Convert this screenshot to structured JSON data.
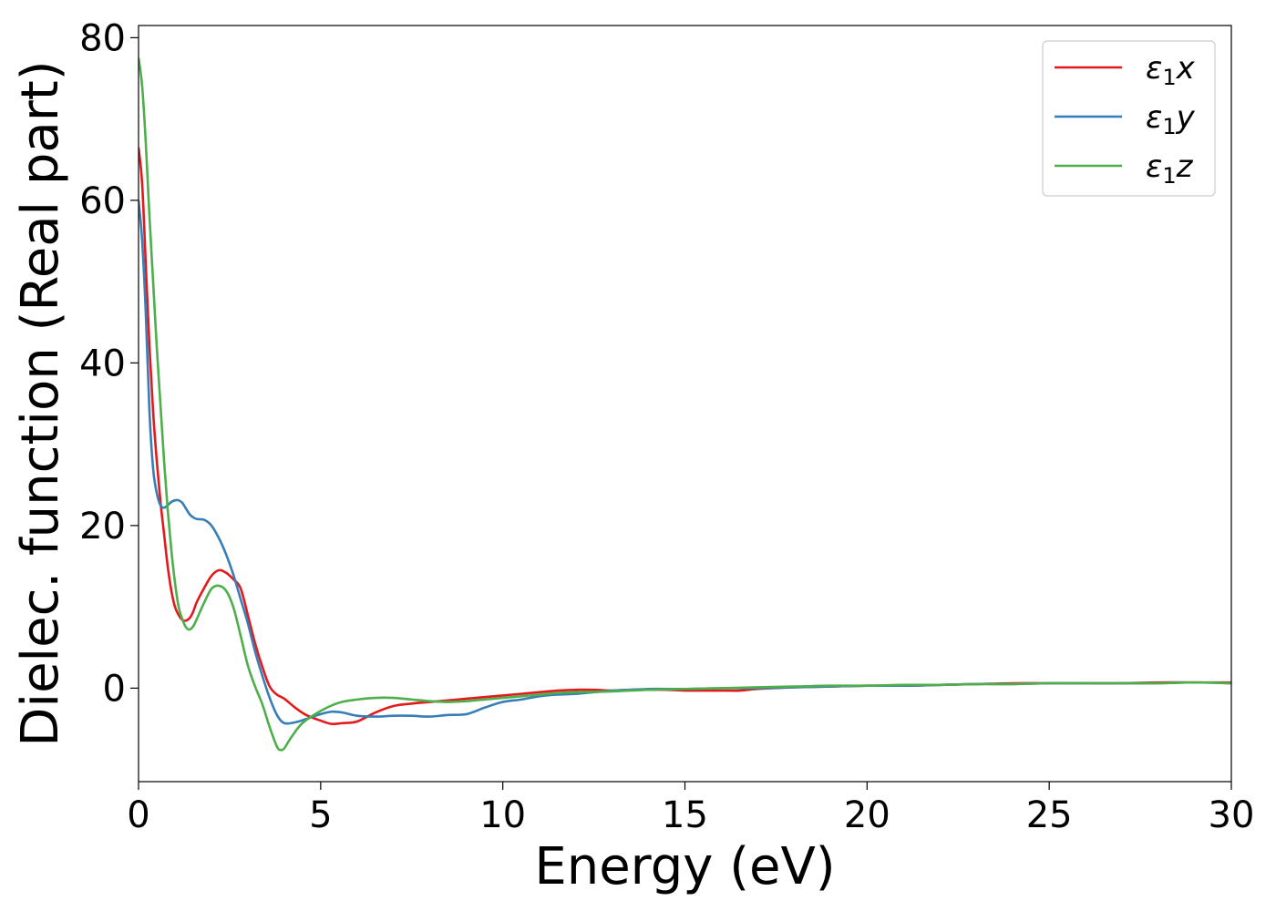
{
  "chart_data": {
    "type": "line",
    "title": "",
    "xlabel": "Energy (eV)",
    "ylabel": "Dielec. function (Real part)",
    "xlim": [
      0,
      30
    ],
    "ylim": [
      -11.5,
      81.5
    ],
    "xticks": [
      0,
      5,
      10,
      15,
      20,
      25,
      30
    ],
    "yticks": [
      0,
      20,
      40,
      60,
      80
    ],
    "xtick_labels": [
      "0",
      "5",
      "10",
      "15",
      "20",
      "25",
      "30"
    ],
    "ytick_labels": [
      "0",
      "20",
      "40",
      "60",
      "80"
    ],
    "grid": false,
    "legend_position": "top-right",
    "series": [
      {
        "name": "ε1x",
        "legend_symbol": "ε",
        "legend_sub": "1",
        "legend_var": "x",
        "color": "#e31a1c",
        "points": [
          [
            0,
            66.5
          ],
          [
            0.1,
            62
          ],
          [
            0.2,
            52
          ],
          [
            0.3,
            42
          ],
          [
            0.4,
            34
          ],
          [
            0.5,
            28
          ],
          [
            0.6,
            23
          ],
          [
            0.7,
            19
          ],
          [
            0.8,
            15
          ],
          [
            0.9,
            12
          ],
          [
            1.0,
            10
          ],
          [
            1.1,
            9.0
          ],
          [
            1.2,
            8.4
          ],
          [
            1.3,
            8.3
          ],
          [
            1.4,
            8.6
          ],
          [
            1.5,
            9.4
          ],
          [
            1.6,
            10.6
          ],
          [
            1.8,
            12.3
          ],
          [
            2.0,
            13.8
          ],
          [
            2.2,
            14.5
          ],
          [
            2.4,
            14.2
          ],
          [
            2.6,
            13.4
          ],
          [
            2.8,
            12.3
          ],
          [
            3.0,
            9.0
          ],
          [
            3.2,
            5.5
          ],
          [
            3.4,
            2.6
          ],
          [
            3.6,
            0.2
          ],
          [
            3.8,
            -0.8
          ],
          [
            4.0,
            -1.3
          ],
          [
            4.3,
            -2.4
          ],
          [
            4.6,
            -3.3
          ],
          [
            5.0,
            -4.0
          ],
          [
            5.3,
            -4.4
          ],
          [
            5.6,
            -4.3
          ],
          [
            6.0,
            -4.1
          ],
          [
            6.5,
            -3.0
          ],
          [
            7.0,
            -2.2
          ],
          [
            7.5,
            -1.9
          ],
          [
            8.0,
            -1.7
          ],
          [
            8.5,
            -1.5
          ],
          [
            9.0,
            -1.3
          ],
          [
            9.5,
            -1.1
          ],
          [
            10.0,
            -0.9
          ],
          [
            10.5,
            -0.7
          ],
          [
            11.0,
            -0.5
          ],
          [
            11.5,
            -0.3
          ],
          [
            12.0,
            -0.2
          ],
          [
            12.5,
            -0.2
          ],
          [
            13.0,
            -0.3
          ],
          [
            13.5,
            -0.2
          ],
          [
            14.0,
            -0.2
          ],
          [
            14.5,
            -0.2
          ],
          [
            15.0,
            -0.3
          ],
          [
            15.5,
            -0.3
          ],
          [
            16.0,
            -0.3
          ],
          [
            16.5,
            -0.3
          ],
          [
            17.0,
            -0.1
          ],
          [
            18.0,
            0.1
          ],
          [
            19.0,
            0.2
          ],
          [
            20.0,
            0.3
          ],
          [
            21.0,
            0.3
          ],
          [
            22.0,
            0.4
          ],
          [
            23.0,
            0.5
          ],
          [
            24.0,
            0.6
          ],
          [
            25.0,
            0.6
          ],
          [
            26.0,
            0.6
          ],
          [
            27.0,
            0.6
          ],
          [
            28.0,
            0.7
          ],
          [
            29.0,
            0.7
          ],
          [
            30.0,
            0.7
          ]
        ]
      },
      {
        "name": "ε1y",
        "legend_symbol": "ε",
        "legend_sub": "1",
        "legend_var": "y",
        "color": "#377eb8",
        "points": [
          [
            0,
            60
          ],
          [
            0.1,
            55
          ],
          [
            0.2,
            46
          ],
          [
            0.3,
            34
          ],
          [
            0.4,
            27
          ],
          [
            0.5,
            24
          ],
          [
            0.6,
            22.5
          ],
          [
            0.7,
            22.2
          ],
          [
            0.8,
            22.5
          ],
          [
            0.9,
            22.9
          ],
          [
            1.0,
            23.1
          ],
          [
            1.1,
            23.1
          ],
          [
            1.2,
            22.8
          ],
          [
            1.3,
            22.1
          ],
          [
            1.4,
            21.4
          ],
          [
            1.5,
            21.0
          ],
          [
            1.6,
            20.8
          ],
          [
            1.8,
            20.7
          ],
          [
            2.0,
            20.0
          ],
          [
            2.2,
            18.5
          ],
          [
            2.4,
            16.5
          ],
          [
            2.6,
            14.0
          ],
          [
            2.8,
            11.0
          ],
          [
            3.0,
            8.0
          ],
          [
            3.2,
            4.5
          ],
          [
            3.4,
            1.5
          ],
          [
            3.6,
            -1.2
          ],
          [
            3.8,
            -3.3
          ],
          [
            4.0,
            -4.3
          ],
          [
            4.3,
            -4.2
          ],
          [
            4.6,
            -3.8
          ],
          [
            5.0,
            -3.2
          ],
          [
            5.3,
            -2.9
          ],
          [
            5.6,
            -3.0
          ],
          [
            6.0,
            -3.4
          ],
          [
            6.5,
            -3.5
          ],
          [
            7.0,
            -3.4
          ],
          [
            7.5,
            -3.4
          ],
          [
            8.0,
            -3.5
          ],
          [
            8.5,
            -3.3
          ],
          [
            9.0,
            -3.2
          ],
          [
            9.5,
            -2.4
          ],
          [
            10.0,
            -1.7
          ],
          [
            10.5,
            -1.4
          ],
          [
            11.0,
            -1.0
          ],
          [
            11.5,
            -0.8
          ],
          [
            12.0,
            -0.7
          ],
          [
            12.5,
            -0.5
          ],
          [
            13.0,
            -0.3
          ],
          [
            13.5,
            -0.2
          ],
          [
            14.0,
            -0.1
          ],
          [
            14.5,
            -0.1
          ],
          [
            15.0,
            -0.1
          ],
          [
            16.0,
            0.0
          ],
          [
            17.0,
            0.0
          ],
          [
            18.0,
            0.1
          ],
          [
            19.0,
            0.2
          ],
          [
            20.0,
            0.3
          ],
          [
            21.0,
            0.3
          ],
          [
            22.0,
            0.4
          ],
          [
            23.0,
            0.5
          ],
          [
            24.0,
            0.5
          ],
          [
            25.0,
            0.6
          ],
          [
            26.0,
            0.6
          ],
          [
            27.0,
            0.6
          ],
          [
            28.0,
            0.6
          ],
          [
            29.0,
            0.7
          ],
          [
            30.0,
            0.6
          ]
        ]
      },
      {
        "name": "ε1z",
        "legend_symbol": "ε",
        "legend_sub": "1",
        "legend_var": "z",
        "color": "#4daf4a",
        "points": [
          [
            0,
            77.5
          ],
          [
            0.1,
            74
          ],
          [
            0.2,
            67
          ],
          [
            0.3,
            58
          ],
          [
            0.4,
            50
          ],
          [
            0.5,
            42
          ],
          [
            0.6,
            35
          ],
          [
            0.7,
            28
          ],
          [
            0.8,
            22
          ],
          [
            0.9,
            17
          ],
          [
            1.0,
            13
          ],
          [
            1.1,
            10
          ],
          [
            1.2,
            8.5
          ],
          [
            1.3,
            7.5
          ],
          [
            1.4,
            7.2
          ],
          [
            1.5,
            7.6
          ],
          [
            1.6,
            8.5
          ],
          [
            1.8,
            10.5
          ],
          [
            2.0,
            12.2
          ],
          [
            2.2,
            12.6
          ],
          [
            2.4,
            12.0
          ],
          [
            2.6,
            10.0
          ],
          [
            2.8,
            6.5
          ],
          [
            3.0,
            2.8
          ],
          [
            3.2,
            0.2
          ],
          [
            3.4,
            -2.0
          ],
          [
            3.6,
            -4.8
          ],
          [
            3.8,
            -7.2
          ],
          [
            3.9,
            -7.6
          ],
          [
            4.0,
            -7.4
          ],
          [
            4.2,
            -6.0
          ],
          [
            4.5,
            -4.3
          ],
          [
            5.0,
            -2.8
          ],
          [
            5.5,
            -1.8
          ],
          [
            6.0,
            -1.4
          ],
          [
            6.5,
            -1.2
          ],
          [
            7.0,
            -1.2
          ],
          [
            7.5,
            -1.4
          ],
          [
            8.0,
            -1.6
          ],
          [
            8.5,
            -1.7
          ],
          [
            9.0,
            -1.6
          ],
          [
            9.5,
            -1.4
          ],
          [
            10.0,
            -1.2
          ],
          [
            10.5,
            -1.0
          ],
          [
            11.0,
            -0.8
          ],
          [
            11.5,
            -0.6
          ],
          [
            12.0,
            -0.5
          ],
          [
            13.0,
            -0.4
          ],
          [
            14.0,
            -0.2
          ],
          [
            15.0,
            -0.1
          ],
          [
            16.0,
            0.0
          ],
          [
            17.0,
            0.1
          ],
          [
            18.0,
            0.2
          ],
          [
            19.0,
            0.3
          ],
          [
            20.0,
            0.3
          ],
          [
            21.0,
            0.4
          ],
          [
            22.0,
            0.4
          ],
          [
            23.0,
            0.5
          ],
          [
            24.0,
            0.5
          ],
          [
            25.0,
            0.6
          ],
          [
            26.0,
            0.6
          ],
          [
            27.0,
            0.6
          ],
          [
            28.0,
            0.6
          ],
          [
            29.0,
            0.7
          ],
          [
            30.0,
            0.6
          ]
        ]
      }
    ]
  }
}
